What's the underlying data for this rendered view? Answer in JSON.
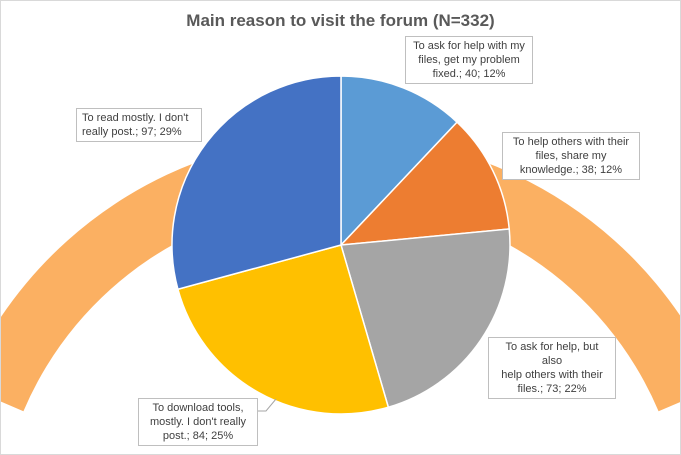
{
  "chart_data": {
    "type": "pie",
    "title": "Main reason to visit the forum (N=332)",
    "total": 332,
    "slices": [
      {
        "label_lines": [
          "To ask for help with my",
          "files, get my problem",
          "fixed.; 40; 12%"
        ],
        "category": "To ask for help with my files, get my problem fixed.",
        "value": 40,
        "percent": "12%",
        "color": "#5b9bd5"
      },
      {
        "label_lines": [
          "To help others with their",
          "files, share my",
          "knowledge.; 38; 12%"
        ],
        "category": "To help others with their files, share my knowledge.",
        "value": 38,
        "percent": "12%",
        "color": "#ed7d31"
      },
      {
        "label_lines": [
          "To ask for help, but also",
          "help others with their",
          "files.; 73; 22%"
        ],
        "category": "To ask for help, but also help others with their files.",
        "value": 73,
        "percent": "22%",
        "color": "#a5a5a5"
      },
      {
        "label_lines": [
          "To download  tools,",
          "mostly. I don't really",
          "post.; 84; 25%"
        ],
        "category": "To download tools, mostly. I don't really post.",
        "value": 84,
        "percent": "25%",
        "color": "#ffc000"
      },
      {
        "label_lines": [
          "To read mostly. I don't",
          "really post.; 97; 29%"
        ],
        "category": "To read mostly. I don't really post.",
        "value": 97,
        "percent": "29%",
        "color": "#4472c4"
      }
    ],
    "legend": "none",
    "data_labels": "callouts"
  },
  "decoration": {
    "arc_color": "#fbb062"
  }
}
